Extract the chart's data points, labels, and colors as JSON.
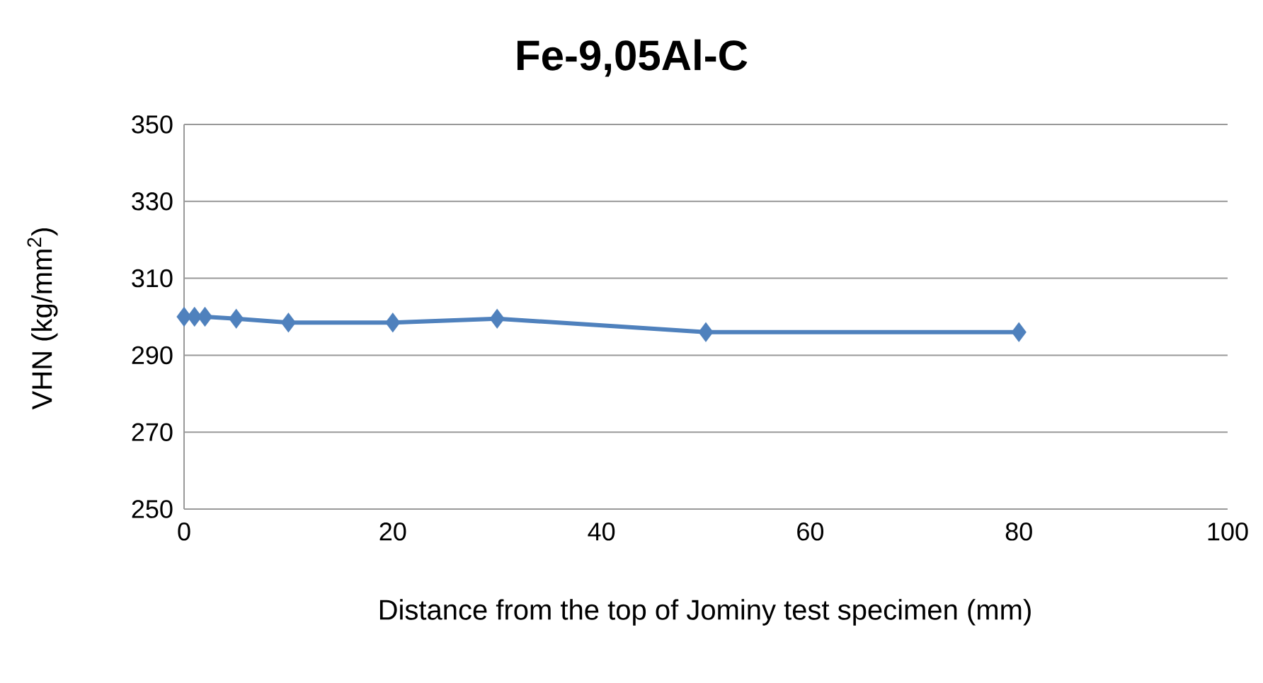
{
  "chart_data": {
    "type": "line",
    "title": "Fe-9,05Al-C",
    "xlabel": "Distance from the top of Jominy test specimen (mm)",
    "ylabel": "VHN (kg/mm$^{2}$)",
    "x": [
      0,
      1,
      2,
      5,
      10,
      20,
      30,
      50,
      80
    ],
    "series": [
      {
        "color": "#4f81bd",
        "values": [
          300,
          300,
          300,
          299.5,
          298.5,
          298.5,
          299.5,
          296,
          296
        ]
      }
    ],
    "xlim": [
      0,
      100
    ],
    "xticks": [
      0,
      20,
      40,
      60,
      80,
      100
    ],
    "ylim": [
      250,
      350
    ],
    "yticks": [
      250,
      270,
      290,
      310,
      330,
      350
    ],
    "grid": "y",
    "marker": "diamond",
    "line_style": "solid"
  }
}
